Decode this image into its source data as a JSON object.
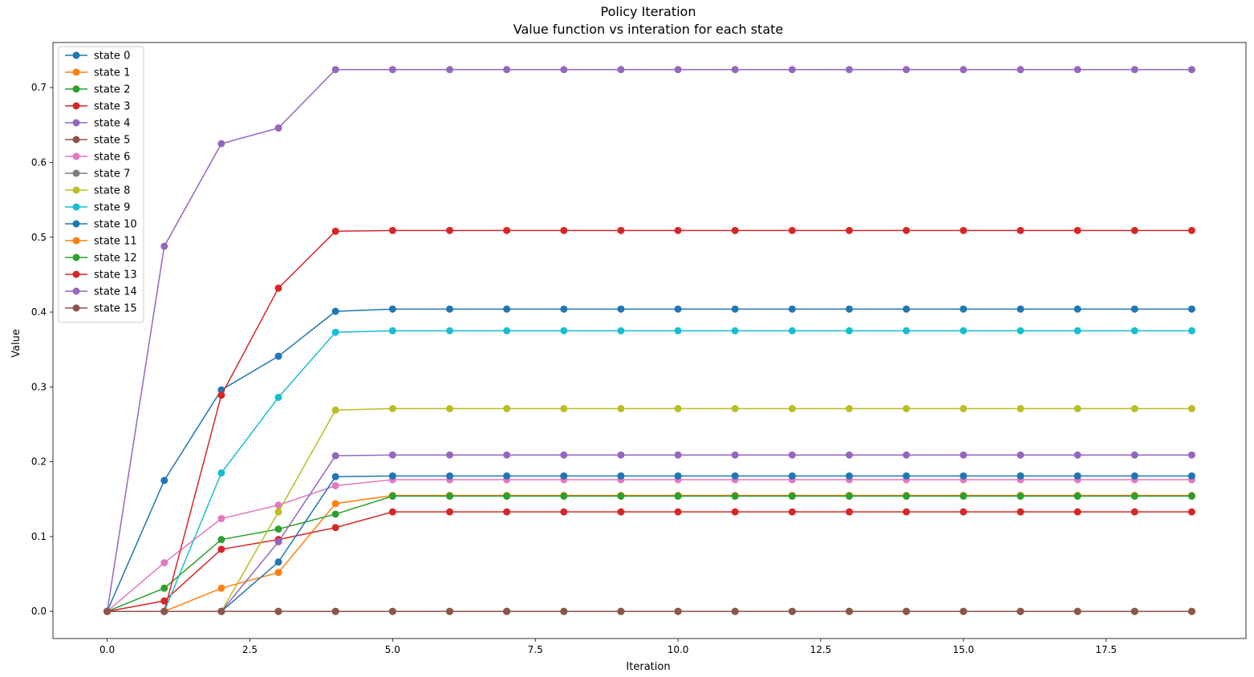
{
  "chart_data": {
    "type": "line",
    "title": "Policy Iteration",
    "subtitle": "Value function vs interation for each state",
    "xlabel": "Iteration",
    "ylabel": "Value",
    "xlim": [
      -0.95,
      19.95
    ],
    "ylim": [
      -0.0362,
      0.7602
    ],
    "x_ticks": [
      0,
      2.5,
      5,
      7.5,
      10,
      12.5,
      15,
      17.5
    ],
    "x_tick_labels": [
      "0.0",
      "2.5",
      "5.0",
      "7.5",
      "10.0",
      "12.5",
      "15.0",
      "17.5"
    ],
    "y_ticks": [
      0,
      0.1,
      0.2,
      0.3,
      0.4,
      0.5,
      0.6,
      0.7
    ],
    "y_tick_labels": [
      "0.0",
      "0.1",
      "0.2",
      "0.3",
      "0.4",
      "0.5",
      "0.6",
      "0.7"
    ],
    "grid": false,
    "legend_position": "upper-left",
    "x": [
      0,
      1,
      2,
      3,
      4,
      5,
      6,
      7,
      8,
      9,
      10,
      11,
      12,
      13,
      14,
      15,
      16,
      17,
      18,
      19
    ],
    "series": [
      {
        "name": "state 0",
        "color": "#1f77b4",
        "values": [
          0,
          0.175,
          0.296,
          0.341,
          0.401,
          0.404,
          0.404,
          0.404,
          0.404,
          0.404,
          0.404,
          0.404,
          0.404,
          0.404,
          0.404,
          0.404,
          0.404,
          0.404,
          0.404,
          0.404
        ]
      },
      {
        "name": "state 1",
        "color": "#ff7f0e",
        "values": [
          0,
          0,
          0.031,
          0.052,
          0.144,
          0.155,
          0.155,
          0.155,
          0.155,
          0.155,
          0.155,
          0.155,
          0.155,
          0.155,
          0.155,
          0.155,
          0.155,
          0.155,
          0.155,
          0.155
        ]
      },
      {
        "name": "state 2",
        "color": "#2ca02c",
        "values": [
          0,
          0.031,
          0.096,
          0.11,
          0.13,
          0.154,
          0.154,
          0.154,
          0.154,
          0.154,
          0.154,
          0.154,
          0.154,
          0.154,
          0.154,
          0.154,
          0.154,
          0.154,
          0.154,
          0.154
        ]
      },
      {
        "name": "state 3",
        "color": "#d62728",
        "values": [
          0,
          0.014,
          0.083,
          0.096,
          0.112,
          0.133,
          0.133,
          0.133,
          0.133,
          0.133,
          0.133,
          0.133,
          0.133,
          0.133,
          0.133,
          0.133,
          0.133,
          0.133,
          0.133,
          0.133
        ]
      },
      {
        "name": "state 4",
        "color": "#9467bd",
        "values": [
          0,
          0.488,
          0.625,
          0.646,
          0.724,
          0.724,
          0.724,
          0.724,
          0.724,
          0.724,
          0.724,
          0.724,
          0.724,
          0.724,
          0.724,
          0.724,
          0.724,
          0.724,
          0.724,
          0.724
        ]
      },
      {
        "name": "state 5",
        "color": "#8c564b",
        "values": [
          0,
          0,
          0,
          0,
          0,
          0,
          0,
          0,
          0,
          0,
          0,
          0,
          0,
          0,
          0,
          0,
          0,
          0,
          0,
          0
        ]
      },
      {
        "name": "state 6",
        "color": "#e377c2",
        "values": [
          0,
          0.065,
          0.124,
          0.142,
          0.168,
          0.176,
          0.176,
          0.176,
          0.176,
          0.176,
          0.176,
          0.176,
          0.176,
          0.176,
          0.176,
          0.176,
          0.176,
          0.176,
          0.176,
          0.176
        ]
      },
      {
        "name": "state 7",
        "color": "#7f7f7f",
        "values": [
          0,
          0,
          0,
          0,
          0,
          0,
          0,
          0,
          0,
          0,
          0,
          0,
          0,
          0,
          0,
          0,
          0,
          0,
          0,
          0
        ]
      },
      {
        "name": "state 8",
        "color": "#bcbd22",
        "values": [
          0,
          0,
          0,
          0.133,
          0.269,
          0.271,
          0.271,
          0.271,
          0.271,
          0.271,
          0.271,
          0.271,
          0.271,
          0.271,
          0.271,
          0.271,
          0.271,
          0.271,
          0.271,
          0.271
        ]
      },
      {
        "name": "state 9",
        "color": "#17becf",
        "values": [
          0,
          0,
          0.185,
          0.286,
          0.373,
          0.375,
          0.375,
          0.375,
          0.375,
          0.375,
          0.375,
          0.375,
          0.375,
          0.375,
          0.375,
          0.375,
          0.375,
          0.375,
          0.375,
          0.375
        ]
      },
      {
        "name": "state 10",
        "color": "#1f77b4",
        "values": [
          0,
          0,
          0,
          0.066,
          0.18,
          0.181,
          0.181,
          0.181,
          0.181,
          0.181,
          0.181,
          0.181,
          0.181,
          0.181,
          0.181,
          0.181,
          0.181,
          0.181,
          0.181,
          0.181
        ]
      },
      {
        "name": "state 11",
        "color": "#ff7f0e",
        "values": [
          0,
          0,
          0,
          0,
          0,
          0,
          0,
          0,
          0,
          0,
          0,
          0,
          0,
          0,
          0,
          0,
          0,
          0,
          0,
          0
        ]
      },
      {
        "name": "state 12",
        "color": "#2ca02c",
        "values": [
          0,
          0,
          0,
          0,
          0,
          0,
          0,
          0,
          0,
          0,
          0,
          0,
          0,
          0,
          0,
          0,
          0,
          0,
          0,
          0
        ]
      },
      {
        "name": "state 13",
        "color": "#d62728",
        "values": [
          0,
          0,
          0.289,
          0.432,
          0.508,
          0.509,
          0.509,
          0.509,
          0.509,
          0.509,
          0.509,
          0.509,
          0.509,
          0.509,
          0.509,
          0.509,
          0.509,
          0.509,
          0.509,
          0.509
        ]
      },
      {
        "name": "state 14",
        "color": "#9467bd",
        "values": [
          0,
          0,
          0,
          0.093,
          0.208,
          0.209,
          0.209,
          0.209,
          0.209,
          0.209,
          0.209,
          0.209,
          0.209,
          0.209,
          0.209,
          0.209,
          0.209,
          0.209,
          0.209,
          0.209
        ]
      },
      {
        "name": "state 15",
        "color": "#8c564b",
        "values": [
          0,
          0,
          0,
          0,
          0,
          0,
          0,
          0,
          0,
          0,
          0,
          0,
          0,
          0,
          0,
          0,
          0,
          0,
          0,
          0
        ]
      }
    ]
  }
}
